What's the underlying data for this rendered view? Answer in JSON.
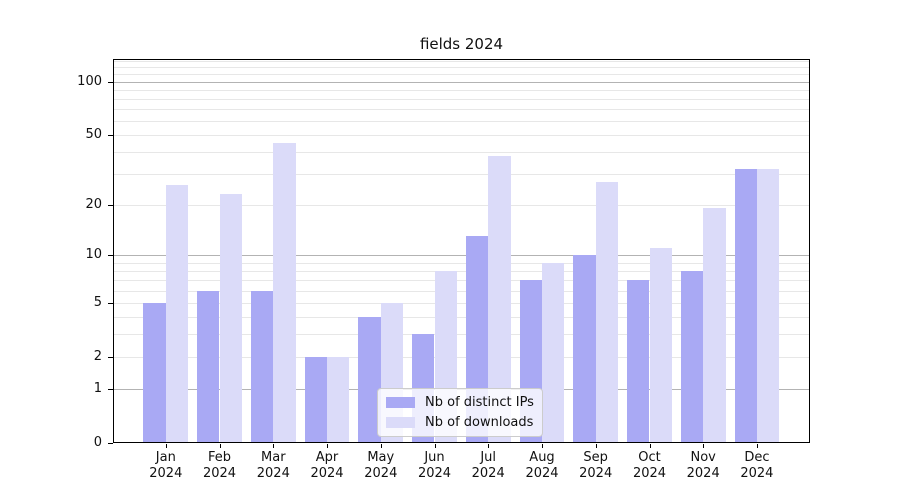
{
  "title": "fields 2024",
  "chart_data": {
    "type": "bar",
    "title": "fields 2024",
    "categories": [
      "Jan",
      "Feb",
      "Mar",
      "Apr",
      "May",
      "Jun",
      "Jul",
      "Aug",
      "Sep",
      "Oct",
      "Nov",
      "Dec"
    ],
    "category_year": "2024",
    "series": [
      {
        "name": "Nb of distinct IPs",
        "color": "#a9a9f4",
        "values": [
          5,
          6,
          6,
          2,
          4,
          3,
          13,
          7,
          10,
          7,
          8,
          32
        ]
      },
      {
        "name": "Nb of downloads",
        "color": "#dbdbf9",
        "values": [
          26,
          23,
          45,
          2,
          5,
          8,
          38,
          9,
          27,
          11,
          19,
          32
        ]
      }
    ],
    "yscale": "log1p",
    "ylim": [
      0,
      132
    ],
    "yticks": [
      0,
      1,
      2,
      5,
      10,
      20,
      50,
      100
    ],
    "ytick_labels": [
      "0",
      "1",
      "2",
      "5",
      "10",
      "20",
      "50",
      "100"
    ],
    "major_gridlines": [
      1,
      10,
      100
    ],
    "minor_gridlines": [
      2,
      3,
      4,
      5,
      6,
      7,
      8,
      9,
      20,
      30,
      40,
      50,
      60,
      70,
      80,
      90,
      110,
      120,
      130
    ],
    "grid": "on",
    "legend_position": "lower center",
    "xlabel": "",
    "ylabel": ""
  },
  "colors": {
    "bar_dark": "#a9a9f4",
    "bar_light": "#dbdbf9",
    "grid_minor": "#e7e7e7",
    "grid_major": "#b3b3b3",
    "axis": "#000000",
    "legend_border": "#cccccc",
    "background": "#ffffff"
  }
}
